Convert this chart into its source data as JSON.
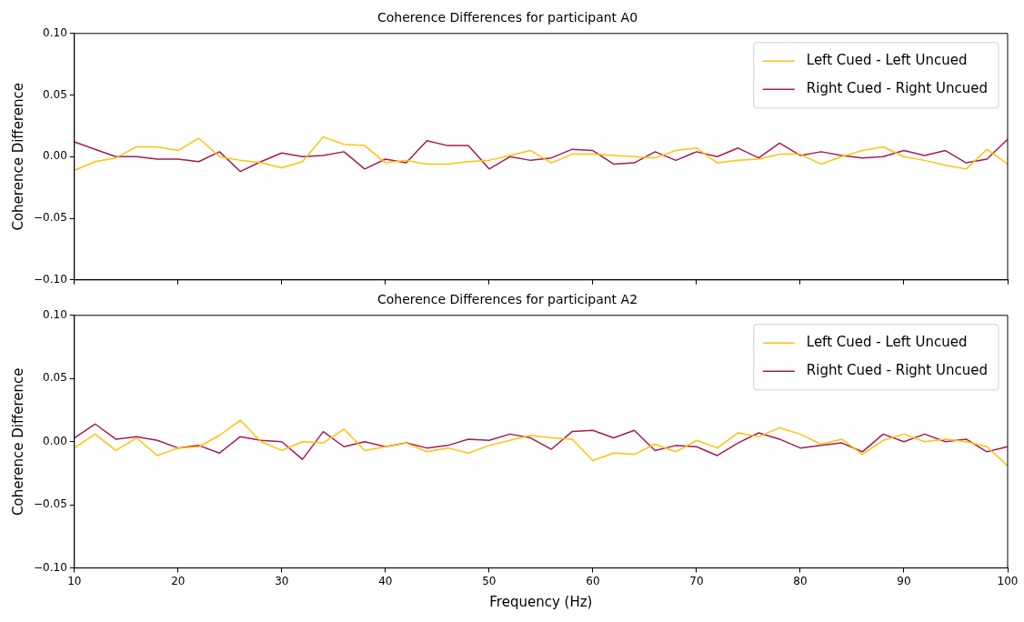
{
  "chart_data": [
    {
      "type": "line",
      "title": "Coherence Differences for participant A0",
      "ylabel": "Coherence Difference",
      "x": [
        10,
        12,
        14,
        16,
        18,
        20,
        22,
        24,
        26,
        28,
        30,
        32,
        34,
        36,
        38,
        40,
        42,
        44,
        46,
        48,
        50,
        52,
        54,
        56,
        58,
        60,
        62,
        64,
        66,
        68,
        70,
        72,
        74,
        76,
        78,
        80,
        82,
        84,
        86,
        88,
        90,
        92,
        94,
        96,
        98,
        100
      ],
      "series": [
        {
          "name": "Left Cued - Left Uncued",
          "color": "#ffc20a",
          "values": [
            -0.011,
            -0.004,
            -0.001,
            0.008,
            0.008,
            0.005,
            0.015,
            0.0,
            -0.003,
            -0.005,
            -0.009,
            -0.004,
            0.016,
            0.01,
            0.009,
            -0.005,
            -0.003,
            -0.006,
            -0.006,
            -0.004,
            -0.003,
            0.001,
            0.005,
            -0.005,
            0.002,
            0.002,
            0.001,
            0.0,
            -0.001,
            0.005,
            0.007,
            -0.005,
            -0.003,
            -0.002,
            0.002,
            0.002,
            -0.006,
            0.0,
            0.005,
            0.008,
            0.0,
            -0.003,
            -0.007,
            -0.01,
            0.006,
            -0.006
          ]
        },
        {
          "name": "Right Cued - Right Uncued",
          "color": "#a51c56",
          "values": [
            0.012,
            0.006,
            0.0,
            0.0,
            -0.002,
            -0.002,
            -0.004,
            0.004,
            -0.012,
            -0.004,
            0.003,
            0.0,
            0.001,
            0.004,
            -0.01,
            -0.002,
            -0.005,
            0.013,
            0.009,
            0.009,
            -0.01,
            0.0,
            -0.003,
            -0.001,
            0.006,
            0.005,
            -0.006,
            -0.005,
            0.004,
            -0.003,
            0.004,
            0.0,
            0.007,
            -0.001,
            0.011,
            0.001,
            0.004,
            0.001,
            -0.001,
            0.0,
            0.005,
            0.001,
            0.005,
            -0.005,
            -0.002,
            0.014
          ]
        }
      ],
      "xlim": [
        10,
        100
      ],
      "xticks": [
        10,
        20,
        30,
        40,
        50,
        60,
        70,
        80,
        90,
        100
      ],
      "ylim": [
        -0.1,
        0.1
      ],
      "yticks": [
        {
          "value": -0.1,
          "label": "−0.10"
        },
        {
          "value": -0.05,
          "label": "−0.05"
        },
        {
          "value": 0,
          "label": "0.00"
        },
        {
          "value": 0.05,
          "label": "0.05"
        },
        {
          "value": 0.1,
          "label": "0.10"
        }
      ],
      "tick_labels": "y",
      "legend": "top right",
      "marker": "none",
      "line_style": "solid",
      "grid": false
    },
    {
      "type": "line",
      "title": "Coherence Differences for participant A2",
      "xlabel": "Frequency (Hz)",
      "ylabel": "Coherence Difference",
      "x": [
        10,
        12,
        14,
        16,
        18,
        20,
        22,
        24,
        26,
        28,
        30,
        32,
        34,
        36,
        38,
        40,
        42,
        44,
        46,
        48,
        50,
        52,
        54,
        56,
        58,
        60,
        62,
        64,
        66,
        68,
        70,
        72,
        74,
        76,
        78,
        80,
        82,
        84,
        86,
        88,
        90,
        92,
        94,
        96,
        98,
        100
      ],
      "series": [
        {
          "name": "Left Cued - Left Uncued",
          "color": "#ffc20a",
          "values": [
            -0.005,
            0.006,
            -0.007,
            0.003,
            -0.011,
            -0.005,
            -0.004,
            0.005,
            0.017,
            0.0,
            -0.007,
            0.0,
            -0.001,
            0.01,
            -0.007,
            -0.004,
            -0.001,
            -0.008,
            -0.005,
            -0.009,
            -0.003,
            0.001,
            0.005,
            0.003,
            0.002,
            -0.015,
            -0.009,
            -0.01,
            -0.002,
            -0.008,
            0.001,
            -0.005,
            0.007,
            0.004,
            0.011,
            0.006,
            -0.002,
            0.002,
            -0.01,
            0.001,
            0.006,
            0.0,
            0.002,
            0.0,
            -0.004,
            -0.019
          ]
        },
        {
          "name": "Right Cued - Right Uncued",
          "color": "#a51c56",
          "values": [
            0.003,
            0.014,
            0.002,
            0.004,
            0.001,
            -0.005,
            -0.003,
            -0.009,
            0.004,
            0.001,
            0.0,
            -0.014,
            0.008,
            -0.004,
            0.0,
            -0.004,
            -0.001,
            -0.005,
            -0.003,
            0.002,
            0.001,
            0.006,
            0.003,
            -0.006,
            0.008,
            0.009,
            0.003,
            0.009,
            -0.007,
            -0.003,
            -0.004,
            -0.011,
            -0.001,
            0.007,
            0.002,
            -0.005,
            -0.003,
            -0.001,
            -0.008,
            0.006,
            0.0,
            0.006,
            0.0,
            0.002,
            -0.008,
            -0.004
          ]
        }
      ],
      "xlim": [
        10,
        100
      ],
      "xticks": [
        10,
        20,
        30,
        40,
        50,
        60,
        70,
        80,
        90,
        100
      ],
      "ylim": [
        -0.1,
        0.1
      ],
      "yticks": [
        {
          "value": -0.1,
          "label": "−0.10"
        },
        {
          "value": -0.05,
          "label": "−0.05"
        },
        {
          "value": 0,
          "label": "0.00"
        },
        {
          "value": 0.05,
          "label": "0.05"
        },
        {
          "value": 0.1,
          "label": "0.10"
        }
      ],
      "legend": "top right",
      "marker": "none",
      "line_style": "solid",
      "grid": false
    }
  ]
}
